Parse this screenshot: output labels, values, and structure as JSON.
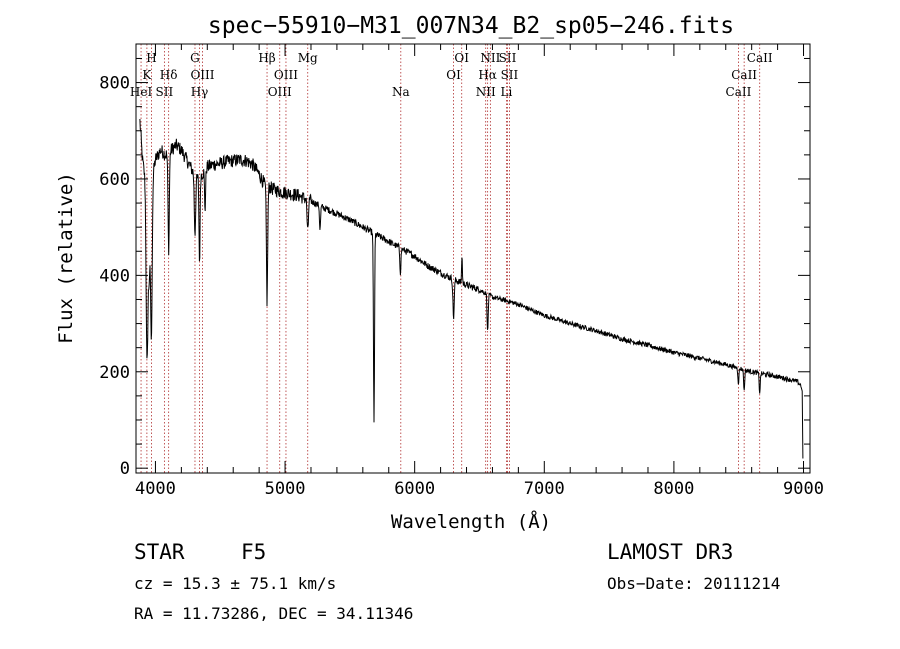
{
  "chart_data": {
    "type": "line",
    "title": "spec−55910−M31_007N34_B2_sp05−246.fits",
    "xlabel": "Wavelength (Å)",
    "ylabel": "Flux (relative)",
    "xlim": [
      3850,
      9050
    ],
    "ylim": [
      -10,
      880
    ],
    "xticks": [
      4000,
      5000,
      6000,
      7000,
      8000,
      9000
    ],
    "xtick_labels": [
      "4000",
      "5000",
      "6000",
      "7000",
      "8000",
      "9000"
    ],
    "yticks": [
      0,
      200,
      400,
      600,
      800
    ],
    "ytick_labels": [
      "0",
      "200",
      "400",
      "600",
      "800"
    ],
    "grid": false,
    "series": [
      {
        "name": "spectrum",
        "color": "#000000",
        "anchors": [
          [
            3880,
            720
          ],
          [
            3900,
            640
          ],
          [
            3920,
            600
          ],
          [
            3940,
            560
          ],
          [
            3960,
            580
          ],
          [
            3980,
            610
          ],
          [
            4000,
            640
          ],
          [
            4040,
            660
          ],
          [
            4080,
            650
          ],
          [
            4120,
            660
          ],
          [
            4160,
            670
          ],
          [
            4200,
            660
          ],
          [
            4240,
            640
          ],
          [
            4280,
            620
          ],
          [
            4320,
            600
          ],
          [
            4360,
            610
          ],
          [
            4400,
            625
          ],
          [
            4450,
            630
          ],
          [
            4500,
            632
          ],
          [
            4550,
            636
          ],
          [
            4600,
            638
          ],
          [
            4650,
            640
          ],
          [
            4700,
            638
          ],
          [
            4750,
            630
          ],
          [
            4800,
            610
          ],
          [
            4840,
            590
          ],
          [
            4900,
            580
          ],
          [
            4950,
            575
          ],
          [
            5000,
            572
          ],
          [
            5100,
            566
          ],
          [
            5200,
            554
          ],
          [
            5300,
            540
          ],
          [
            5400,
            528
          ],
          [
            5500,
            515
          ],
          [
            5600,
            500
          ],
          [
            5700,
            485
          ],
          [
            5800,
            470
          ],
          [
            5900,
            455
          ],
          [
            6000,
            440
          ],
          [
            6100,
            420
          ],
          [
            6200,
            405
          ],
          [
            6300,
            392
          ],
          [
            6400,
            380
          ],
          [
            6500,
            370
          ],
          [
            6600,
            355
          ],
          [
            6700,
            348
          ],
          [
            6800,
            340
          ],
          [
            6900,
            328
          ],
          [
            7000,
            317
          ],
          [
            7200,
            300
          ],
          [
            7400,
            285
          ],
          [
            7600,
            268
          ],
          [
            7800,
            255
          ],
          [
            8000,
            240
          ],
          [
            8200,
            228
          ],
          [
            8400,
            215
          ],
          [
            8600,
            200
          ],
          [
            8800,
            190
          ],
          [
            8950,
            180
          ],
          [
            8985,
            170
          ]
        ],
        "absorption_features": [
          {
            "center": 3934,
            "depth": 330,
            "width": 6
          },
          {
            "center": 3969,
            "depth": 320,
            "width": 6
          },
          {
            "center": 3950,
            "depth": 180,
            "width": 8
          },
          {
            "center": 4102,
            "depth": 200,
            "width": 5
          },
          {
            "center": 4305,
            "depth": 120,
            "width": 5
          },
          {
            "center": 4340,
            "depth": 180,
            "width": 4
          },
          {
            "center": 4383,
            "depth": 80,
            "width": 4
          },
          {
            "center": 4861,
            "depth": 240,
            "width": 5
          },
          {
            "center": 5175,
            "depth": 70,
            "width": 5
          },
          {
            "center": 5270,
            "depth": 50,
            "width": 4
          },
          {
            "center": 5686,
            "depth": 390,
            "width": 4
          },
          {
            "center": 5890,
            "depth": 50,
            "width": 4
          },
          {
            "center": 6300,
            "depth": 80,
            "width": 5
          },
          {
            "center": 6563,
            "depth": 80,
            "width": 4
          },
          {
            "center": 8498,
            "depth": 30,
            "width": 4
          },
          {
            "center": 8542,
            "depth": 45,
            "width": 4
          },
          {
            "center": 8662,
            "depth": 40,
            "width": 4
          }
        ],
        "emission_features": [
          {
            "center": 6365,
            "height": 60,
            "width": 3
          }
        ],
        "end_drop": [
          [
            8990,
            160
          ],
          [
            8995,
            20
          ]
        ]
      }
    ],
    "line_markers": [
      {
        "label": "Ca H",
        "wavelength": 3969,
        "row": 0,
        "text": "H"
      },
      {
        "label": "Ca K",
        "wavelength": 3934,
        "row": 1,
        "text": "K"
      },
      {
        "label": "HeI",
        "wavelength": 3889,
        "row": 2,
        "text": "HeI"
      },
      {
        "label": "SII",
        "wavelength": 4069,
        "row": 2,
        "text": "SII"
      },
      {
        "label": "Hdelta",
        "wavelength": 4102,
        "row": 1,
        "text": "Hδ"
      },
      {
        "label": "G",
        "wavelength": 4305,
        "row": 0,
        "text": "G"
      },
      {
        "label": "OIII 4363",
        "wavelength": 4363,
        "row": 1,
        "text": "OIII"
      },
      {
        "label": "Hgamma",
        "wavelength": 4340,
        "row": 2,
        "text": "Hγ"
      },
      {
        "label": "Hbeta",
        "wavelength": 4861,
        "row": 0,
        "text": "Hβ"
      },
      {
        "label": "OIII 5007",
        "wavelength": 5007,
        "row": 1,
        "text": "OIII"
      },
      {
        "label": "OIII 4959",
        "wavelength": 4959,
        "row": 2,
        "text": "OIII"
      },
      {
        "label": "Mg",
        "wavelength": 5175,
        "row": 0,
        "text": "Mg"
      },
      {
        "label": "Na",
        "wavelength": 5893,
        "row": 2,
        "text": "Na"
      },
      {
        "label": "OI 6363",
        "wavelength": 6363,
        "row": 0,
        "text": "OI"
      },
      {
        "label": "OI 6300",
        "wavelength": 6300,
        "row": 1,
        "text": "OI"
      },
      {
        "label": "NII 6584",
        "wavelength": 6584,
        "row": 0,
        "text": "NII"
      },
      {
        "label": "SII 6716",
        "wavelength": 6716,
        "row": 0,
        "text": "SII"
      },
      {
        "label": "Halpha",
        "wavelength": 6563,
        "row": 1,
        "text": "Hα"
      },
      {
        "label": "SII 6731",
        "wavelength": 6731,
        "row": 1,
        "text": "SII"
      },
      {
        "label": "NII 6548",
        "wavelength": 6548,
        "row": 2,
        "text": "NII"
      },
      {
        "label": "Li",
        "wavelength": 6708,
        "row": 2,
        "text": "Li"
      },
      {
        "label": "CaII 8662",
        "wavelength": 8662,
        "row": 0,
        "text": "CaII"
      },
      {
        "label": "CaII 8542",
        "wavelength": 8542,
        "row": 1,
        "text": "CaII"
      },
      {
        "label": "CaII 8498",
        "wavelength": 8498,
        "row": 2,
        "text": "CaII"
      }
    ],
    "marker_color": "#b03030",
    "axis_color": "#000000"
  },
  "info": {
    "class_label": "STAR",
    "subclass": "F5",
    "survey": "LAMOST DR3",
    "cz_line": "cz = 15.3 ± 75.1 km/s",
    "obs_date": "Obs−Date: 20111214",
    "coords_line": "RA =  11.73286, DEC =  34.11346"
  }
}
